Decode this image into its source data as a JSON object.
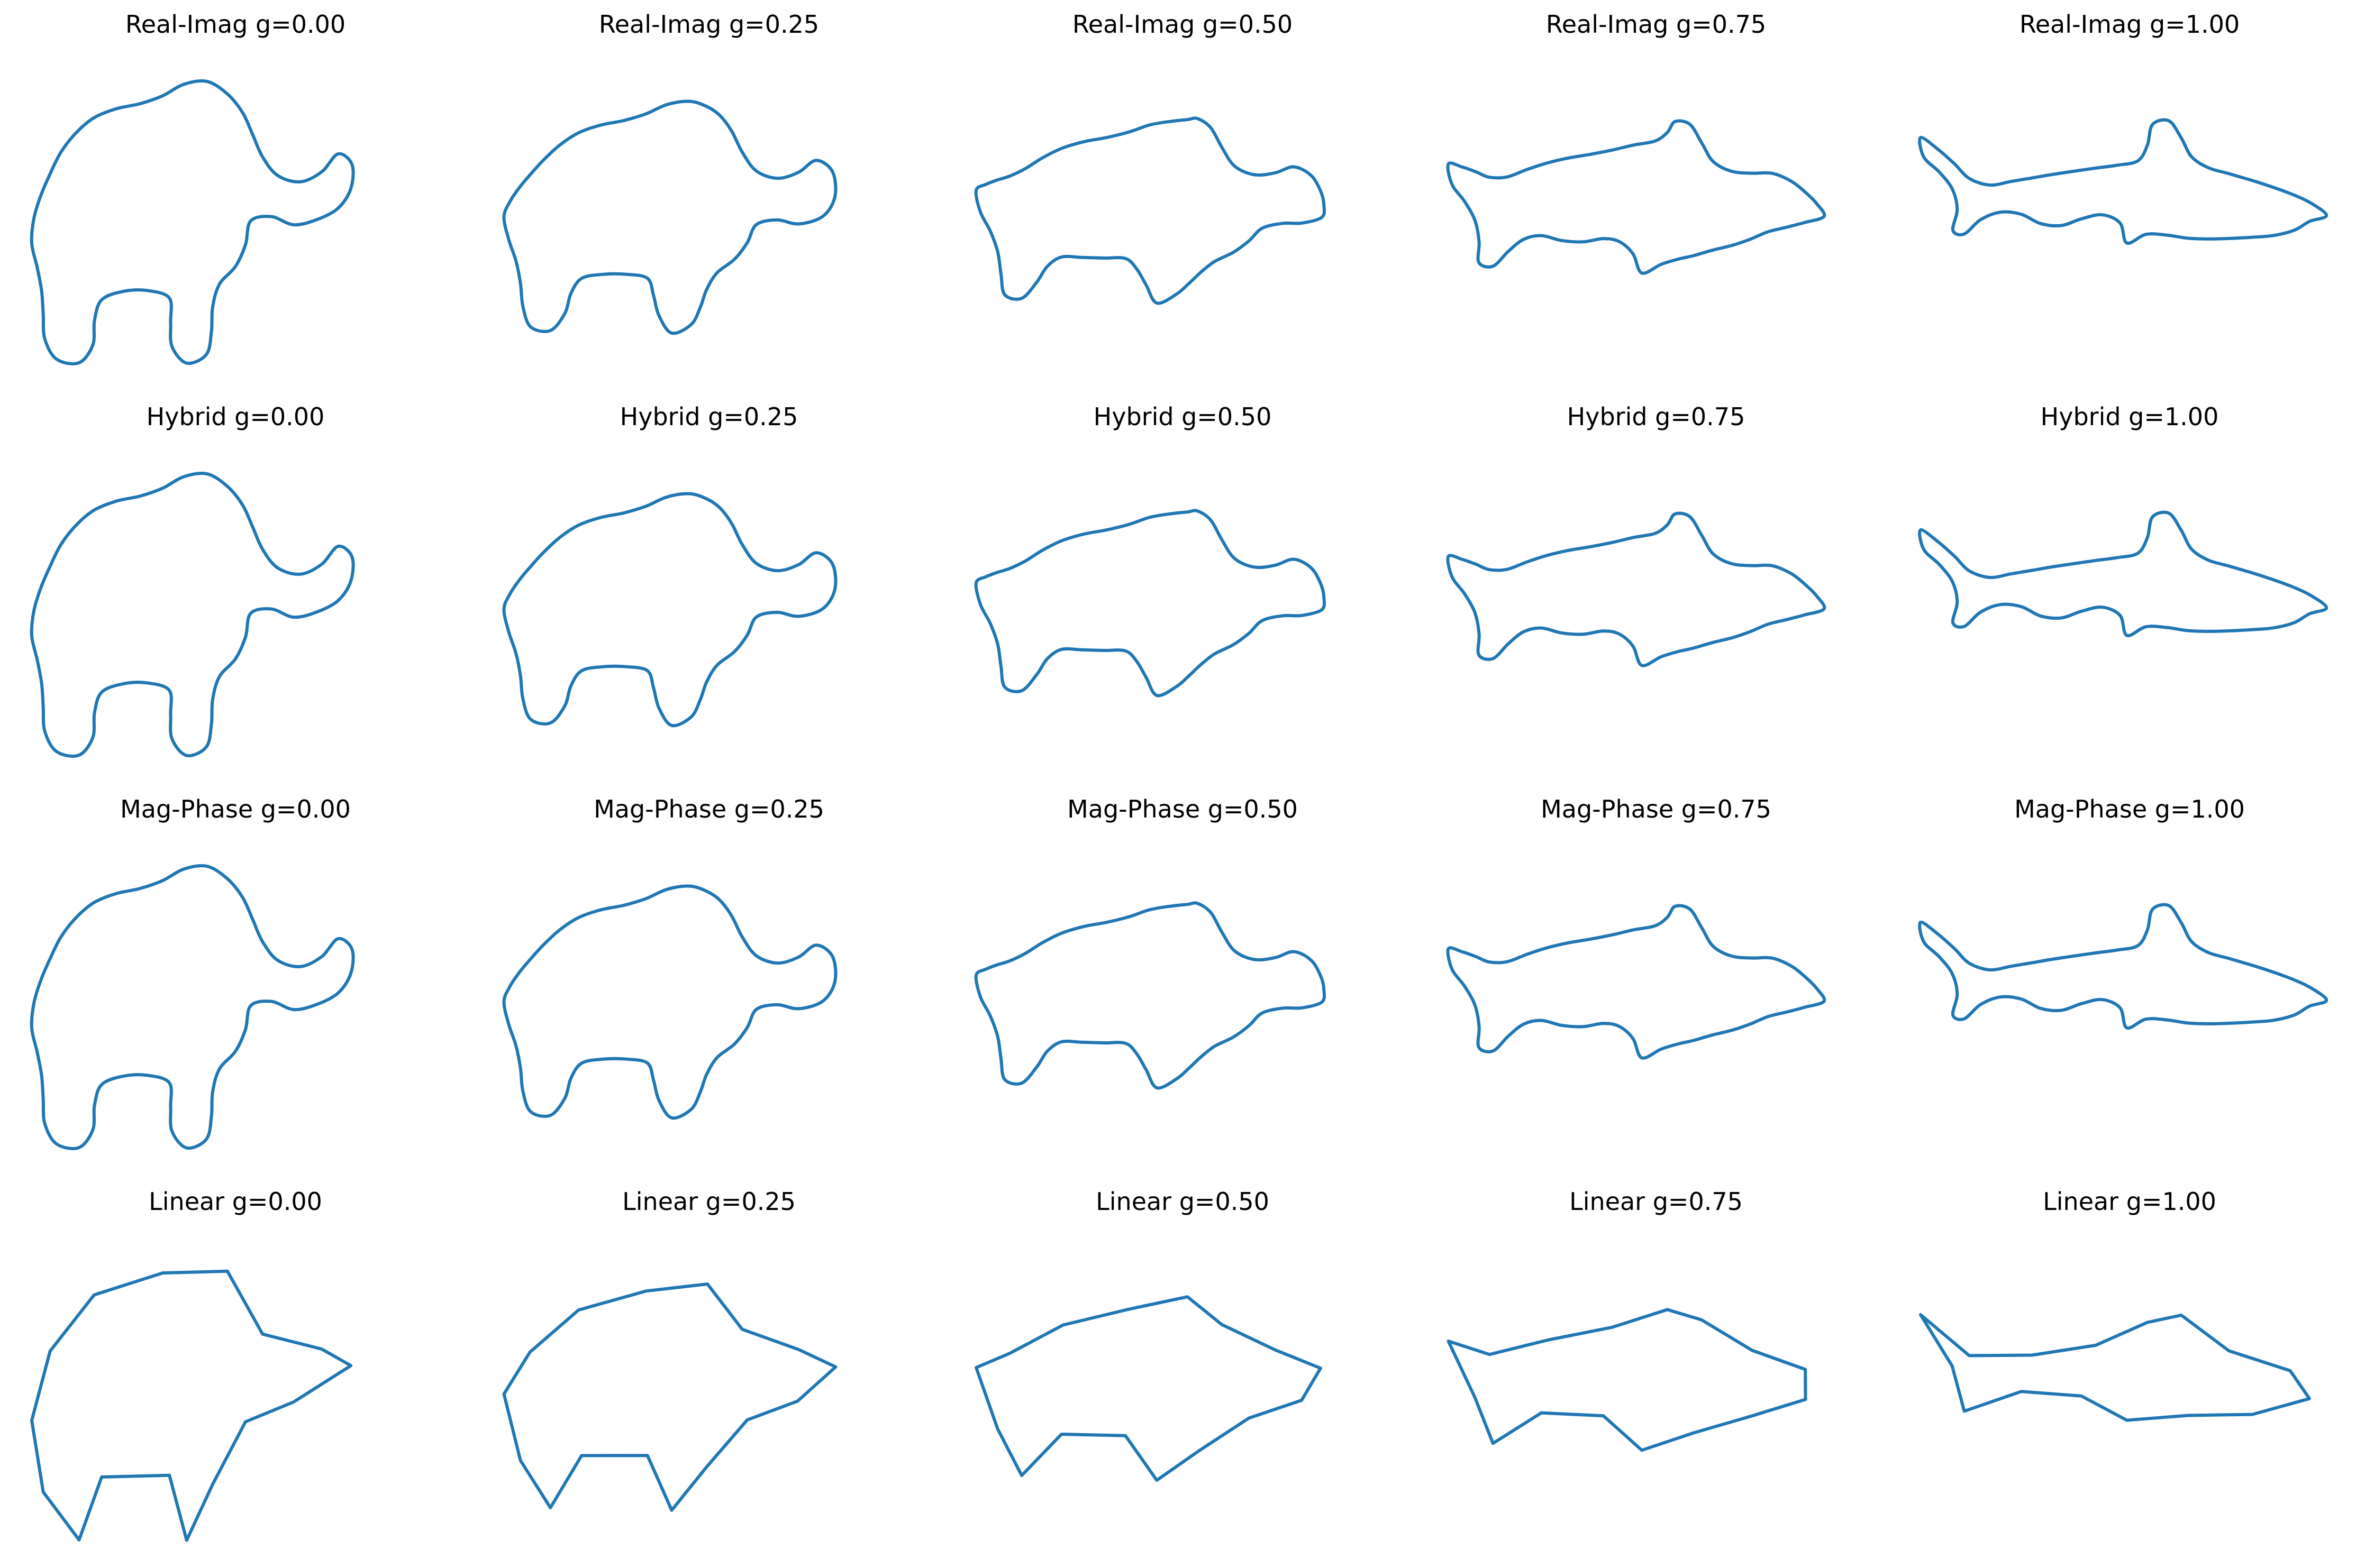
{
  "figure": {
    "line_color": "#1f77b4",
    "background": "#ffffff"
  },
  "chart_data": [
    {
      "type": "line",
      "method": "Real-Imag",
      "g": 0.0,
      "title": "Real-Imag g=0.00",
      "shape": "elephant"
    },
    {
      "type": "line",
      "method": "Real-Imag",
      "g": 0.25,
      "title": "Real-Imag g=0.25",
      "shape": "blend-0.25"
    },
    {
      "type": "line",
      "method": "Real-Imag",
      "g": 0.5,
      "title": "Real-Imag g=0.50",
      "shape": "blend-0.50"
    },
    {
      "type": "line",
      "method": "Real-Imag",
      "g": 0.75,
      "title": "Real-Imag g=0.75",
      "shape": "blend-0.75"
    },
    {
      "type": "line",
      "method": "Real-Imag",
      "g": 1.0,
      "title": "Real-Imag g=1.00",
      "shape": "shark"
    },
    {
      "type": "line",
      "method": "Hybrid",
      "g": 0.0,
      "title": "Hybrid g=0.00",
      "shape": "elephant"
    },
    {
      "type": "line",
      "method": "Hybrid",
      "g": 0.25,
      "title": "Hybrid g=0.25",
      "shape": "blend-0.25"
    },
    {
      "type": "line",
      "method": "Hybrid",
      "g": 0.5,
      "title": "Hybrid g=0.50",
      "shape": "blend-0.50"
    },
    {
      "type": "line",
      "method": "Hybrid",
      "g": 0.75,
      "title": "Hybrid g=0.75",
      "shape": "blend-0.75"
    },
    {
      "type": "line",
      "method": "Hybrid",
      "g": 1.0,
      "title": "Hybrid g=1.00",
      "shape": "shark"
    },
    {
      "type": "line",
      "method": "Mag-Phase",
      "g": 0.0,
      "title": "Mag-Phase g=0.00",
      "shape": "elephant"
    },
    {
      "type": "line",
      "method": "Mag-Phase",
      "g": 0.25,
      "title": "Mag-Phase g=0.25",
      "shape": "blend-0.25"
    },
    {
      "type": "line",
      "method": "Mag-Phase",
      "g": 0.5,
      "title": "Mag-Phase g=0.50",
      "shape": "blend-0.50"
    },
    {
      "type": "line",
      "method": "Mag-Phase",
      "g": 0.75,
      "title": "Mag-Phase g=0.75",
      "shape": "blend-0.75"
    },
    {
      "type": "line",
      "method": "Mag-Phase",
      "g": 1.0,
      "title": "Mag-Phase g=1.00",
      "shape": "shark"
    },
    {
      "type": "line",
      "method": "Linear",
      "g": 0.0,
      "title": "Linear g=0.00",
      "shape": "elephant-polygon"
    },
    {
      "type": "line",
      "method": "Linear",
      "g": 0.25,
      "title": "Linear g=0.25",
      "shape": "blend-0.25-polygon"
    },
    {
      "type": "line",
      "method": "Linear",
      "g": 0.5,
      "title": "Linear g=0.50",
      "shape": "blend-0.50-polygon"
    },
    {
      "type": "line",
      "method": "Linear",
      "g": 0.75,
      "title": "Linear g=0.75",
      "shape": "blend-0.75-polygon"
    },
    {
      "type": "line",
      "method": "Linear",
      "g": 1.0,
      "title": "Linear g=1.00",
      "shape": "shark-polygon"
    }
  ]
}
